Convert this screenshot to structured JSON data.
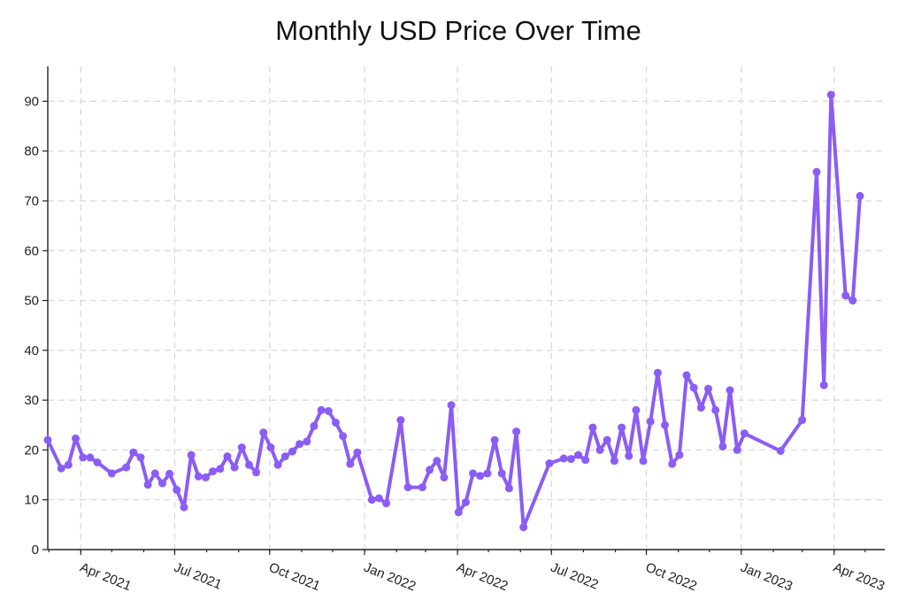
{
  "chart_data": {
    "type": "line",
    "title": "Monthly USD Price Over Time",
    "xlabel": "",
    "ylabel": "",
    "xlim": [
      "2021-02-28",
      "2023-05-20"
    ],
    "ylim": [
      0,
      97
    ],
    "y_ticks": [
      0,
      10,
      20,
      30,
      40,
      50,
      60,
      70,
      80,
      90
    ],
    "x_ticks": [
      {
        "date": "2021-04-01",
        "label": "Apr 2021"
      },
      {
        "date": "2021-07-01",
        "label": "Jul 2021"
      },
      {
        "date": "2021-10-01",
        "label": "Oct 2021"
      },
      {
        "date": "2022-01-01",
        "label": "Jan 2022"
      },
      {
        "date": "2022-04-01",
        "label": "Apr 2022"
      },
      {
        "date": "2022-07-01",
        "label": "Jul 2022"
      },
      {
        "date": "2022-10-01",
        "label": "Oct 2022"
      },
      {
        "date": "2023-01-01",
        "label": "Jan 2023"
      },
      {
        "date": "2023-04-01",
        "label": "Apr 2023"
      }
    ],
    "grid": true,
    "series": [
      {
        "color": "#8b5cf6",
        "points": [
          [
            "2021-02-28",
            22.0
          ],
          [
            "2021-03-13",
            16.3
          ],
          [
            "2021-03-20",
            17.0
          ],
          [
            "2021-03-27",
            22.3
          ],
          [
            "2021-04-03",
            18.5
          ],
          [
            "2021-04-10",
            18.5
          ],
          [
            "2021-04-17",
            17.5
          ],
          [
            "2021-05-01",
            15.3
          ],
          [
            "2021-05-15",
            16.5
          ],
          [
            "2021-05-22",
            19.5
          ],
          [
            "2021-05-29",
            18.5
          ],
          [
            "2021-06-05",
            13.0
          ],
          [
            "2021-06-12",
            15.3
          ],
          [
            "2021-06-19",
            13.3
          ],
          [
            "2021-06-26",
            15.2
          ],
          [
            "2021-07-03",
            12.0
          ],
          [
            "2021-07-10",
            8.5
          ],
          [
            "2021-07-17",
            19.0
          ],
          [
            "2021-07-24",
            14.7
          ],
          [
            "2021-07-31",
            14.5
          ],
          [
            "2021-08-07",
            15.7
          ],
          [
            "2021-08-14",
            16.2
          ],
          [
            "2021-08-21",
            18.7
          ],
          [
            "2021-08-28",
            16.5
          ],
          [
            "2021-09-04",
            20.5
          ],
          [
            "2021-09-11",
            17.0
          ],
          [
            "2021-09-18",
            15.5
          ],
          [
            "2021-09-25",
            23.5
          ],
          [
            "2021-10-02",
            20.5
          ],
          [
            "2021-10-09",
            17.0
          ],
          [
            "2021-10-16",
            18.7
          ],
          [
            "2021-10-23",
            19.7
          ],
          [
            "2021-10-30",
            21.2
          ],
          [
            "2021-11-06",
            21.7
          ],
          [
            "2021-11-13",
            24.8
          ],
          [
            "2021-11-20",
            28.0
          ],
          [
            "2021-11-27",
            27.8
          ],
          [
            "2021-12-04",
            25.5
          ],
          [
            "2021-12-11",
            22.8
          ],
          [
            "2021-12-18",
            17.2
          ],
          [
            "2021-12-25",
            19.5
          ],
          [
            "2022-01-08",
            10.0
          ],
          [
            "2022-01-15",
            10.3
          ],
          [
            "2022-01-22",
            9.3
          ],
          [
            "2022-02-05",
            26.0
          ],
          [
            "2022-02-12",
            12.5
          ],
          [
            "2022-02-26",
            12.5
          ],
          [
            "2022-03-05",
            16.0
          ],
          [
            "2022-03-12",
            17.8
          ],
          [
            "2022-03-19",
            14.5
          ],
          [
            "2022-03-26",
            29.0
          ],
          [
            "2022-04-02",
            7.5
          ],
          [
            "2022-04-09",
            9.5
          ],
          [
            "2022-04-16",
            15.3
          ],
          [
            "2022-04-23",
            14.8
          ],
          [
            "2022-04-30",
            15.3
          ],
          [
            "2022-05-07",
            22.0
          ],
          [
            "2022-05-14",
            15.3
          ],
          [
            "2022-05-21",
            12.3
          ],
          [
            "2022-05-28",
            23.7
          ],
          [
            "2022-06-04",
            4.5
          ],
          [
            "2022-06-29",
            17.3
          ],
          [
            "2022-07-13",
            18.3
          ],
          [
            "2022-07-20",
            18.2
          ],
          [
            "2022-07-27",
            19.0
          ],
          [
            "2022-08-03",
            18.0
          ],
          [
            "2022-08-10",
            24.5
          ],
          [
            "2022-08-17",
            20.0
          ],
          [
            "2022-08-24",
            22.0
          ],
          [
            "2022-08-31",
            17.8
          ],
          [
            "2022-09-07",
            24.5
          ],
          [
            "2022-09-14",
            18.8
          ],
          [
            "2022-09-21",
            28.0
          ],
          [
            "2022-09-28",
            17.8
          ],
          [
            "2022-10-05",
            25.7
          ],
          [
            "2022-10-12",
            35.5
          ],
          [
            "2022-10-19",
            25.0
          ],
          [
            "2022-10-26",
            17.2
          ],
          [
            "2022-11-02",
            19.0
          ],
          [
            "2022-11-09",
            35.0
          ],
          [
            "2022-11-16",
            32.5
          ],
          [
            "2022-11-23",
            28.5
          ],
          [
            "2022-11-30",
            32.3
          ],
          [
            "2022-12-07",
            28.0
          ],
          [
            "2022-12-14",
            20.7
          ],
          [
            "2022-12-21",
            32.0
          ],
          [
            "2022-12-28",
            20.0
          ],
          [
            "2023-01-04",
            23.3
          ],
          [
            "2023-02-08",
            19.8
          ],
          [
            "2023-03-01",
            26.0
          ],
          [
            "2023-03-15",
            75.8
          ],
          [
            "2023-03-22",
            33.0
          ],
          [
            "2023-03-29",
            91.3
          ],
          [
            "2023-04-12",
            51.0
          ],
          [
            "2023-04-19",
            50.0
          ],
          [
            "2023-04-26",
            71.0
          ]
        ]
      }
    ]
  }
}
